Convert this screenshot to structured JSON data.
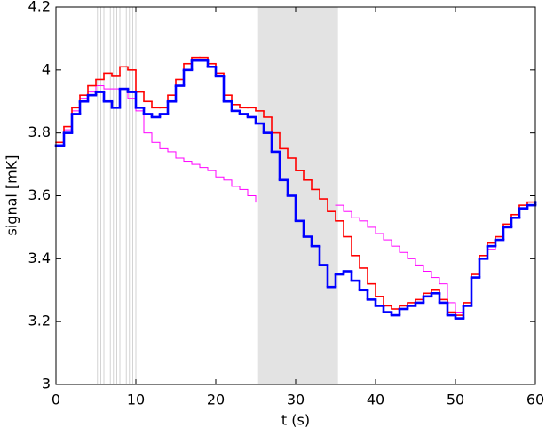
{
  "chart_data": {
    "type": "stairs",
    "xlabel": "t (s)",
    "ylabel": "signal [mK]",
    "xlim": [
      0,
      60
    ],
    "ylim": [
      3,
      4.2
    ],
    "xticks": [
      0,
      10,
      20,
      30,
      40,
      50,
      60
    ],
    "yticks": [
      3,
      3.2,
      3.4,
      3.6,
      3.8,
      4,
      4.2
    ],
    "shaded_span": [
      25.3,
      35.3
    ],
    "shade_color": "#e3e3e3",
    "vertical_lines": [
      5.2,
      5.6,
      6.0,
      6.4,
      6.8,
      7.2,
      7.6,
      8.0,
      8.4,
      8.8,
      9.2,
      9.6,
      10.0
    ],
    "x": [
      0,
      1,
      2,
      3,
      4,
      5,
      6,
      7,
      8,
      9,
      10,
      11,
      12,
      13,
      14,
      15,
      16,
      17,
      18,
      19,
      20,
      21,
      22,
      23,
      24,
      25,
      26,
      27,
      28,
      29,
      30,
      31,
      32,
      33,
      34,
      35,
      36,
      37,
      38,
      39,
      40,
      41,
      42,
      43,
      44,
      45,
      46,
      47,
      48,
      49,
      50,
      51,
      52,
      53,
      54,
      55,
      56,
      57,
      58,
      59,
      60
    ],
    "series": [
      {
        "color": "#ff00ff",
        "width": 1,
        "values": [
          3.77,
          3.81,
          3.87,
          3.91,
          3.93,
          3.95,
          3.94,
          3.94,
          3.94,
          3.91,
          3.87,
          3.8,
          3.77,
          3.75,
          3.74,
          3.72,
          3.71,
          3.7,
          3.69,
          3.68,
          3.66,
          3.65,
          3.63,
          3.62,
          3.6,
          3.58,
          null,
          null,
          null,
          null,
          null,
          null,
          null,
          null,
          null,
          3.57,
          3.55,
          3.53,
          3.52,
          3.5,
          3.48,
          3.46,
          3.44,
          3.42,
          3.4,
          3.38,
          3.36,
          3.34,
          3.32,
          3.26,
          3.23,
          3.25,
          3.34,
          3.4,
          3.43,
          3.46,
          3.5,
          3.53,
          3.56,
          3.57,
          3.58
        ]
      },
      {
        "color": "#ff0000",
        "width": 1.6,
        "values": [
          3.77,
          3.82,
          3.88,
          3.92,
          3.95,
          3.97,
          3.99,
          3.98,
          4.01,
          4.0,
          3.93,
          3.9,
          3.88,
          3.88,
          3.92,
          3.97,
          4.02,
          4.04,
          4.04,
          4.02,
          3.99,
          3.92,
          3.89,
          3.88,
          3.88,
          3.87,
          3.85,
          3.8,
          3.75,
          3.72,
          3.68,
          3.65,
          3.62,
          3.59,
          3.55,
          3.52,
          3.47,
          3.41,
          3.37,
          3.32,
          3.28,
          3.25,
          3.24,
          3.25,
          3.26,
          3.27,
          3.29,
          3.3,
          3.27,
          3.23,
          3.22,
          3.26,
          3.35,
          3.41,
          3.45,
          3.47,
          3.51,
          3.54,
          3.57,
          3.58,
          3.58
        ]
      },
      {
        "color": "#0000ff",
        "width": 2.6,
        "values": [
          3.76,
          3.8,
          3.86,
          3.9,
          3.92,
          3.93,
          3.9,
          3.88,
          3.94,
          3.93,
          3.88,
          3.86,
          3.85,
          3.86,
          3.9,
          3.95,
          4.0,
          4.03,
          4.03,
          4.01,
          3.98,
          3.9,
          3.87,
          3.86,
          3.85,
          3.83,
          3.8,
          3.74,
          3.65,
          3.6,
          3.52,
          3.47,
          3.44,
          3.38,
          3.31,
          3.35,
          3.36,
          3.33,
          3.3,
          3.27,
          3.25,
          3.23,
          3.22,
          3.24,
          3.25,
          3.26,
          3.28,
          3.29,
          3.26,
          3.22,
          3.21,
          3.25,
          3.34,
          3.4,
          3.44,
          3.46,
          3.5,
          3.53,
          3.56,
          3.57,
          3.58
        ]
      }
    ]
  }
}
